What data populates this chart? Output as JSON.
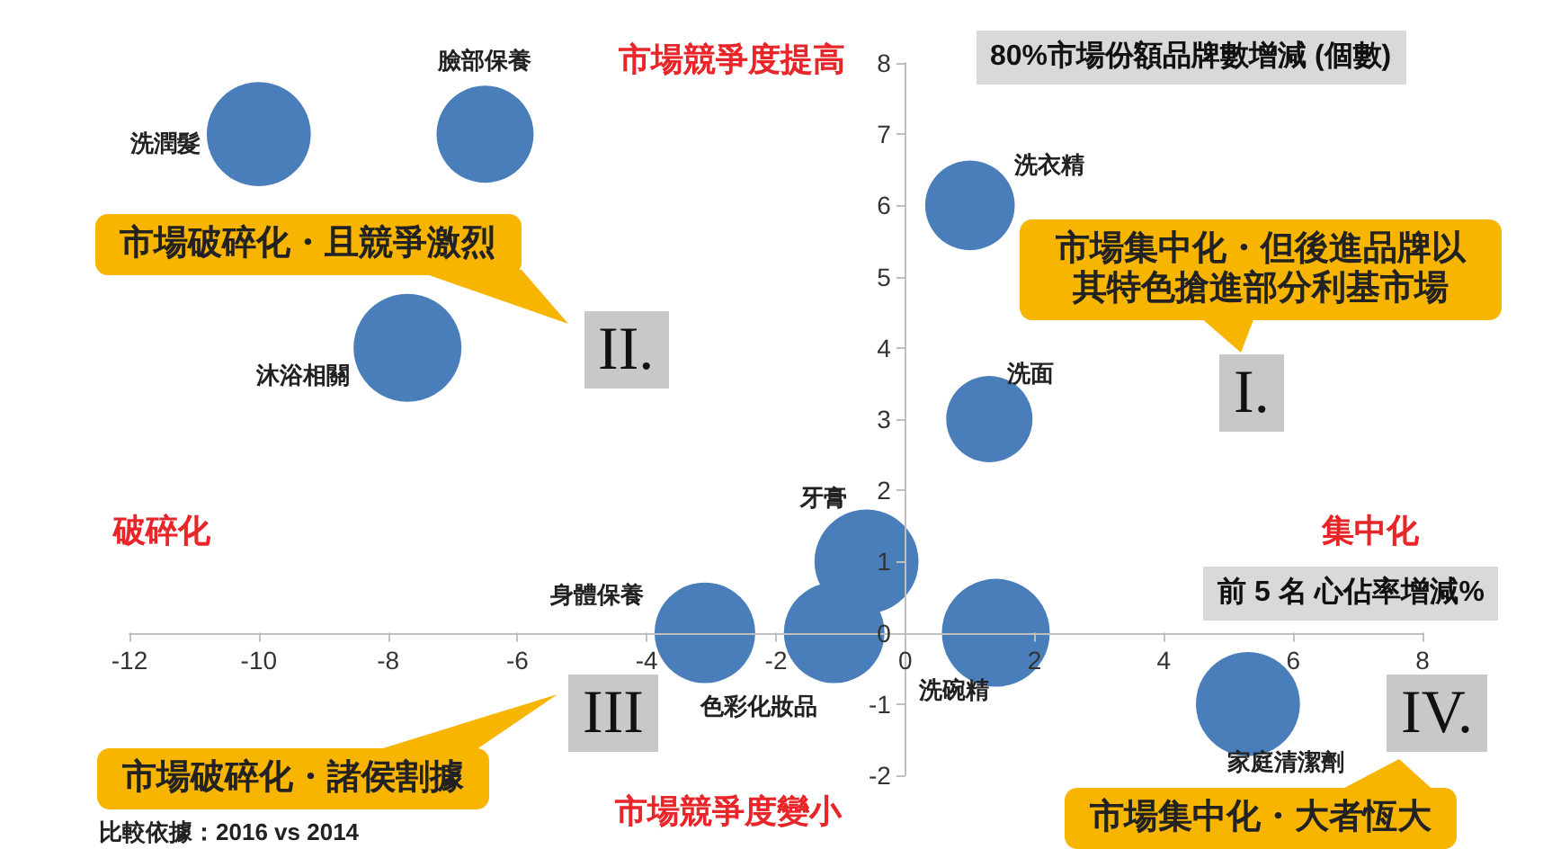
{
  "chart_data": {
    "type": "bubble",
    "xlabel": "前 5 名 心佔率增減%",
    "ylabel": "80%市場份額品牌數增減 (個數)",
    "series": [
      {
        "color": "#4a7ebb",
        "x": [
          -10,
          -6.5,
          -7.7,
          1.0,
          1.3,
          -0.6,
          -3.1,
          -1.1,
          1.4,
          5.3
        ],
        "values": [
          7,
          7,
          4,
          6,
          3,
          1,
          0,
          0,
          0,
          -1
        ],
        "sizes": [
          0.93,
          0.81,
          1,
          0.69,
          0.64,
          0.93,
          0.87,
          0.87,
          1,
          0.93
        ]
      }
    ],
    "xlim": [
      -12,
      8
    ],
    "xticks": [
      -12,
      -10,
      -8,
      -6,
      -4,
      -2,
      0,
      2,
      4,
      6,
      8
    ],
    "ylim": [
      -2,
      8
    ],
    "yticks": [
      -2,
      -1,
      0,
      1,
      2,
      3,
      4,
      5,
      6,
      7,
      8
    ],
    "grid": false,
    "marker": "circle",
    "annotations": [
      {
        "text": "洗潤髮",
        "x": -10,
        "y": 7
      },
      {
        "text": "臉部保養",
        "x": -6.5,
        "y": 7
      },
      {
        "text": "沐浴相關",
        "x": -7.7,
        "y": 4
      },
      {
        "text": "洗衣精",
        "x": 1.0,
        "y": 6
      },
      {
        "text": "洗面",
        "x": 1.3,
        "y": 3
      },
      {
        "text": "牙膏",
        "x": -0.6,
        "y": 1
      },
      {
        "text": "身體保養",
        "x": -3.1,
        "y": 0
      },
      {
        "text": "色彩化妝品",
        "x": -1.1,
        "y": 0
      },
      {
        "text": "洗碗精",
        "x": 1.4,
        "y": 0
      },
      {
        "text": "家庭清潔劑",
        "x": 5.3,
        "y": -1
      },
      "市場競爭度提高",
      "市場競爭度變小",
      "破碎化",
      "集中化",
      "市場破碎化・且競爭激烈",
      "II.",
      "市場集中化・但後進品牌以其特色搶進部分利基市場",
      "I.",
      "市場破碎化・諸侯割據",
      "III",
      "市場集中化・大者恆大",
      "IV.",
      "比較依據：2016 vs 2014"
    ]
  }
}
